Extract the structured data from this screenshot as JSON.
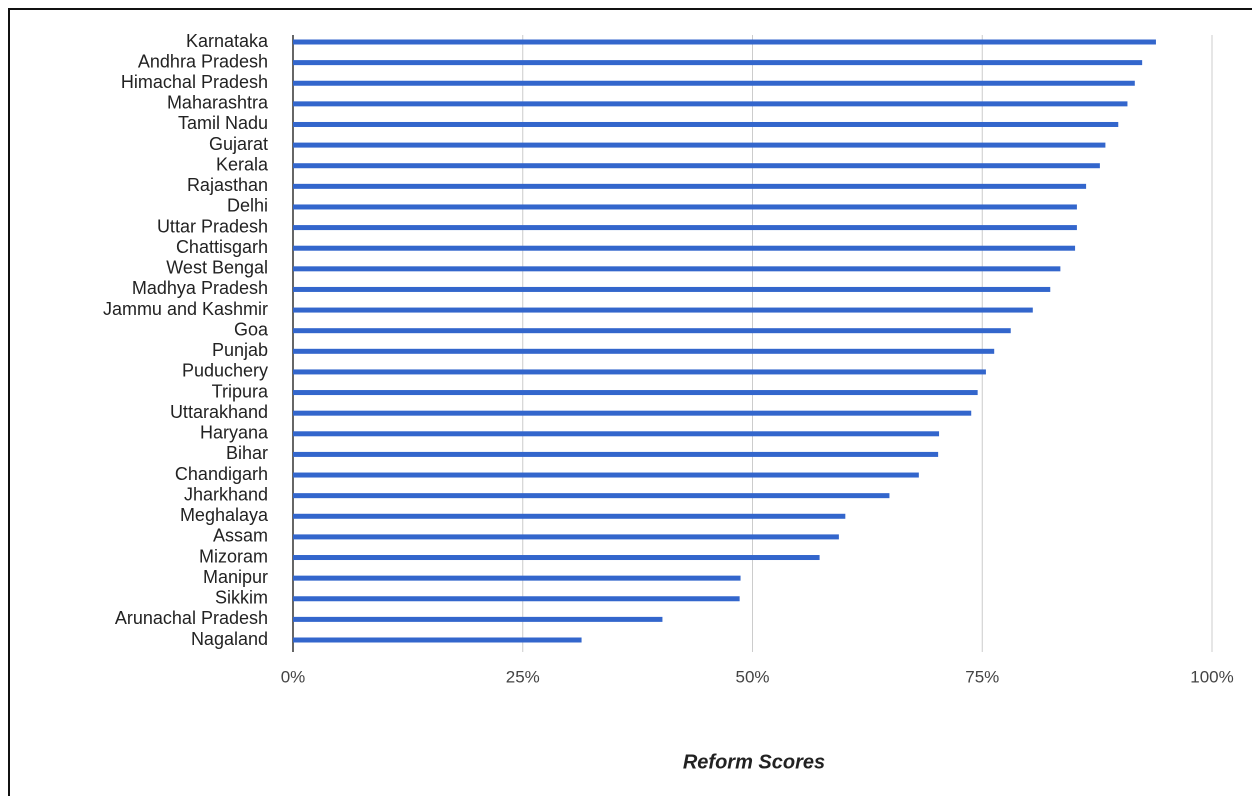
{
  "chart_data": {
    "type": "bar",
    "orientation": "horizontal",
    "x_axis_label": "Reform Scores",
    "categories": [
      "Karnataka",
      "Andhra Pradesh",
      "Himachal Pradesh",
      "Maharashtra",
      "Tamil Nadu",
      "Gujarat",
      "Kerala",
      "Rajasthan",
      "Delhi",
      "Uttar Pradesh",
      "Chattisgarh",
      "West Bengal",
      "Madhya Pradesh",
      "Jammu and Kashmir",
      "Goa",
      "Punjab",
      "Puduchery",
      "Tripura",
      "Uttarakhand",
      "Haryana",
      "Bihar",
      "Chandigarh",
      "Jharkhand",
      "Meghalaya",
      "Assam",
      "Mizoram",
      "Manipur",
      "Sikkim",
      "Arunachal Pradesh",
      "Nagaland"
    ],
    "values": [
      93.9,
      92.4,
      91.6,
      90.8,
      89.8,
      88.4,
      87.8,
      86.3,
      85.3,
      85.3,
      85.1,
      83.5,
      82.4,
      80.5,
      78.1,
      76.3,
      75.4,
      74.5,
      73.8,
      70.3,
      70.2,
      68.1,
      64.9,
      60.1,
      59.4,
      57.3,
      48.7,
      48.6,
      40.2,
      31.4
    ],
    "color": "#3366cc",
    "xlim": [
      0,
      100
    ],
    "xticks": [
      {
        "value": 0,
        "label": "0%"
      },
      {
        "value": 25,
        "label": "25%"
      },
      {
        "value": 50,
        "label": "50%"
      },
      {
        "value": 75,
        "label": "75%"
      },
      {
        "value": 100,
        "label": "100%"
      }
    ],
    "grid": true
  }
}
